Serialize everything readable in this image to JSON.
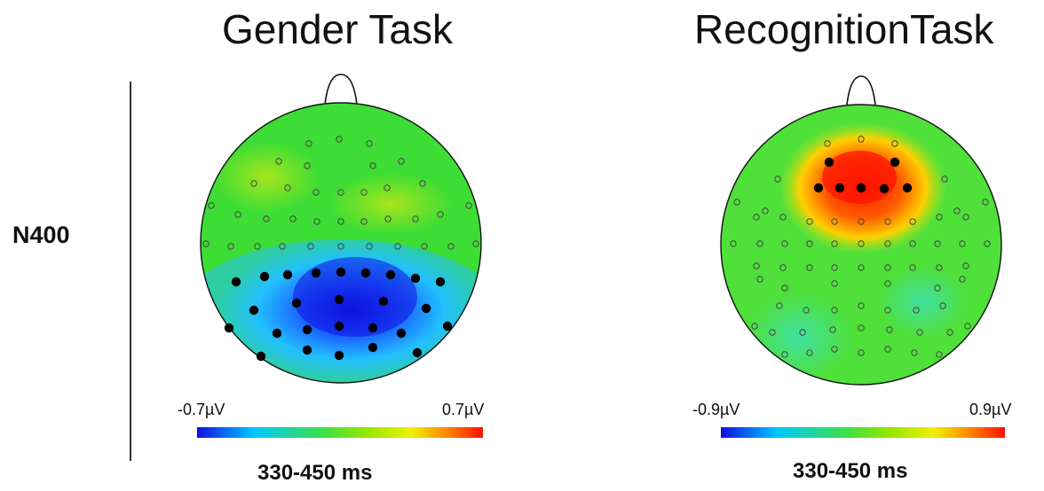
{
  "row_label": "N400",
  "panels": [
    {
      "title": "Gender Task",
      "scale_min": "-0.7µV",
      "scale_max": "0.7µV",
      "time_window": "330-450 ms",
      "colors": {
        "head_fill": "#3ddd35",
        "effect": "#1a2cff",
        "highlight": "#22c0ff"
      }
    },
    {
      "title": "RecognitionTask",
      "scale_min": "-0.9µV",
      "scale_max": "0.9µV",
      "time_window": "330-450 ms",
      "colors": {
        "head_fill": "#4fe03a",
        "effect": "#ff2a00",
        "highlight": "#ffd000"
      }
    }
  ],
  "colorbar": [
    "#1010e0",
    "#00c8ff",
    "#40e040",
    "#9be600",
    "#f0f000",
    "#ff8000",
    "#ff1000"
  ]
}
